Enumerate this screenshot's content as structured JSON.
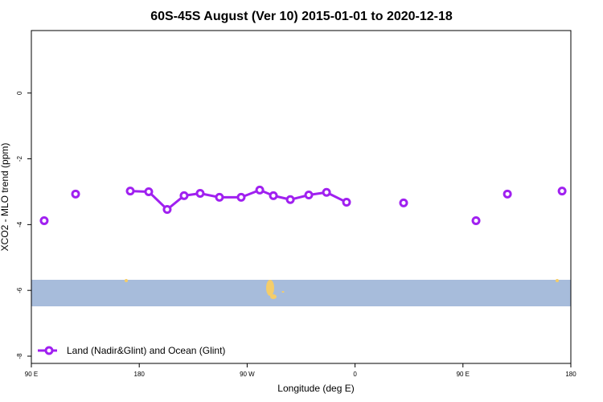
{
  "chart_data": {
    "type": "line",
    "title": "60S-45S August (Ver 10)   2015-01-01 to 2020-12-18",
    "x_label": "Longitude (deg E)",
    "y_label": "XCO2 - MLO trend (ppm)",
    "xlim": [
      90,
      540
    ],
    "ylim": [
      -8.22,
      1.9
    ],
    "xticks": [
      {
        "value": 90,
        "label": "90 E"
      },
      {
        "value": 180,
        "label": "180"
      },
      {
        "value": 270,
        "label": "90 W"
      },
      {
        "value": 360,
        "label": "0"
      },
      {
        "value": 450,
        "label": "90 E"
      },
      {
        "value": 540,
        "label": "180"
      }
    ],
    "yticks": [
      0,
      -2,
      -4,
      -6,
      -8
    ],
    "legend": "bottomleft",
    "series": [
      {
        "name": "Land (Nadir&Glint) and Ocean (Glint)",
        "color": "#a020f0",
        "x": [
          100.7,
          null,
          126.9,
          null,
          172.5,
          187.9,
          203.3,
          217.4,
          230.8,
          246.9,
          265.0,
          280.5,
          291.9,
          306.0,
          321.4,
          336.2,
          352.9,
          null,
          400.5,
          null,
          460.9,
          null,
          487.1,
          null,
          532.7
        ],
        "values": [
          -3.88,
          null,
          -3.07,
          null,
          -2.98,
          -3.0,
          -3.54,
          -3.12,
          -3.05,
          -3.17,
          -3.17,
          -2.95,
          -3.12,
          -3.24,
          -3.1,
          -3.02,
          -3.32,
          null,
          -3.34,
          null,
          -3.88,
          null,
          -3.07,
          null,
          -2.98
        ]
      }
    ]
  }
}
